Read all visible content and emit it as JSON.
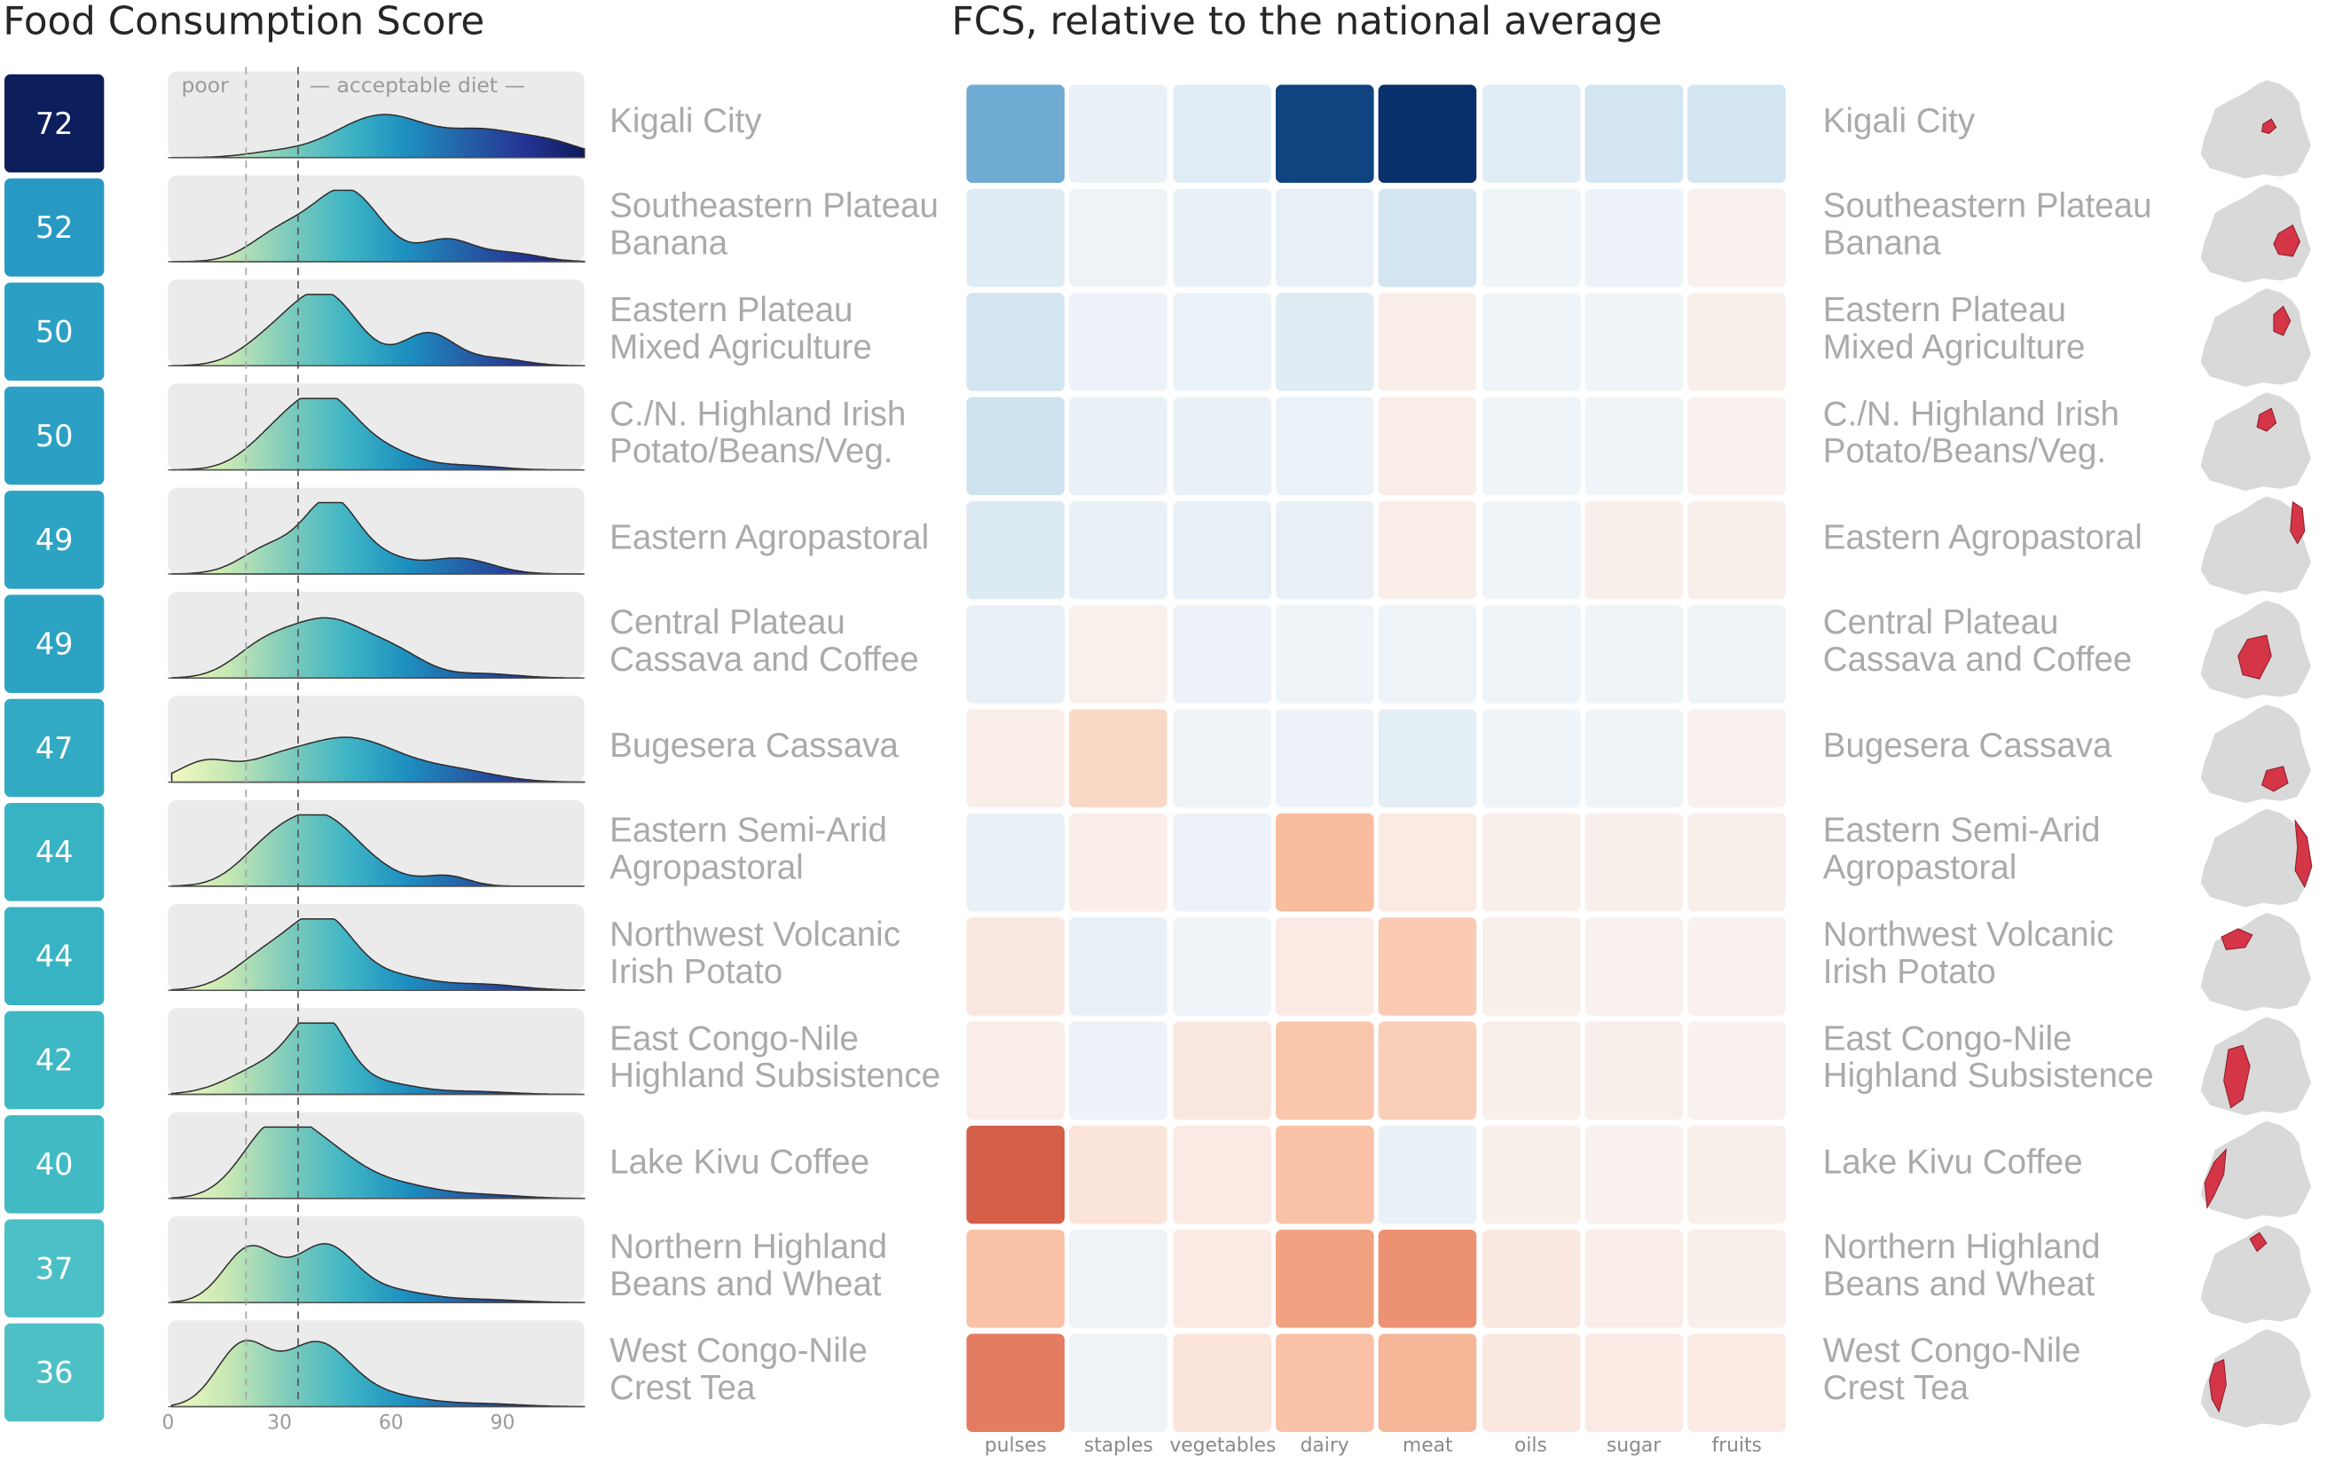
{
  "left_title": "Food Consumption Score",
  "right_title": "FCS, relative to the national average",
  "ridge_annotations": {
    "poor": "poor",
    "acceptable": "acceptable diet"
  },
  "colors": {
    "score_scale": [
      "#0c1e5b",
      "#1b5fa8",
      "#2186c0",
      "#2a9fc4",
      "#3ab6c3",
      "#4dc0c6"
    ],
    "ridge_gradient": [
      "#f4fbc0",
      "#c7e8b4",
      "#7fccbb",
      "#40b5c4",
      "#1d90c0",
      "#2460a7",
      "#253494",
      "#0d1a5c"
    ],
    "ridge_bg": "#ebebeb",
    "highlight": "#d43547",
    "map_fill": "#d9d9d9"
  },
  "chart_data": [
    {
      "type": "area",
      "title": "Food Consumption Score",
      "x_ticks": [
        "0",
        "30",
        "60",
        "90"
      ],
      "xlim": [
        0,
        112
      ],
      "thresholds": [
        21,
        35
      ],
      "categories": [
        "Kigali City",
        "Southeastern Plateau Banana",
        "Eastern Plateau Mixed Agriculture",
        "C./N. Highland Irish Potato/Beans/Veg.",
        "Eastern Agropastoral",
        "Central Plateau Cassava and Coffee",
        "Bugesera Cassava",
        "Eastern Semi-Arid Agropastoral",
        "Northwest Volcanic Irish Potato",
        "East Congo-Nile Highland Subsistence",
        "Lake Kivu Coffee",
        "Northern Highland Beans and Wheat",
        "West Congo-Nile Crest Tea"
      ],
      "region_lines": [
        [
          "Kigali City"
        ],
        [
          "Southeastern Plateau",
          "Banana"
        ],
        [
          "Eastern Plateau",
          "Mixed Agriculture"
        ],
        [
          "C./N. Highland Irish",
          "Potato/Beans/Veg."
        ],
        [
          "Eastern Agropastoral"
        ],
        [
          "Central Plateau",
          "Cassava and Coffee"
        ],
        [
          "Bugesera Cassava"
        ],
        [
          "Eastern Semi-Arid",
          "Agropastoral"
        ],
        [
          "Northwest Volcanic",
          "Irish Potato"
        ],
        [
          "East Congo-Nile",
          "Highland Subsistence"
        ],
        [
          "Lake Kivu Coffee"
        ],
        [
          "Northern Highland",
          "Beans and Wheat"
        ],
        [
          "West Congo-Nile",
          "Crest Tea"
        ]
      ],
      "scores": [
        "72",
        "52",
        "50",
        "50",
        "49",
        "49",
        "47",
        "44",
        "44",
        "42",
        "40",
        "37",
        "36"
      ],
      "densities": [
        {
          "peaks": [
            [
              58,
              0.6,
              13
            ],
            [
              85,
              0.3,
              9
            ],
            [
              102,
              0.22,
              9
            ],
            [
              28,
              0.06,
              8
            ]
          ]
        },
        {
          "peaks": [
            [
              48,
              1.0,
              9
            ],
            [
              30,
              0.38,
              8
            ],
            [
              75,
              0.3,
              7
            ],
            [
              92,
              0.12,
              8
            ]
          ]
        },
        {
          "peaks": [
            [
              42,
              1.0,
              9
            ],
            [
              27,
              0.3,
              8
            ],
            [
              70,
              0.45,
              7
            ],
            [
              88,
              0.1,
              8
            ]
          ]
        },
        {
          "peaks": [
            [
              42,
              1.0,
              9
            ],
            [
              28,
              0.35,
              8
            ],
            [
              60,
              0.2,
              8
            ],
            [
              80,
              0.06,
              9
            ]
          ]
        },
        {
          "peaks": [
            [
              44,
              1.0,
              7
            ],
            [
              28,
              0.38,
              8
            ],
            [
              58,
              0.2,
              7
            ],
            [
              78,
              0.22,
              9
            ]
          ]
        },
        {
          "peaks": [
            [
              43,
              0.8,
              11
            ],
            [
              25,
              0.34,
              8
            ],
            [
              62,
              0.26,
              8
            ],
            [
              85,
              0.06,
              9
            ]
          ]
        },
        {
          "peaks": [
            [
              48,
              0.62,
              14
            ],
            [
              10,
              0.28,
              7
            ],
            [
              27,
              0.16,
              8
            ],
            [
              78,
              0.14,
              11
            ]
          ]
        },
        {
          "peaks": [
            [
              41,
              0.95,
              10
            ],
            [
              26,
              0.38,
              8
            ],
            [
              75,
              0.14,
              6
            ],
            [
              58,
              0.1,
              8
            ]
          ]
        },
        {
          "peaks": [
            [
              42,
              0.92,
              8
            ],
            [
              27,
              0.5,
              9
            ],
            [
              60,
              0.2,
              10
            ],
            [
              85,
              0.08,
              10
            ]
          ]
        },
        {
          "peaks": [
            [
              41,
              1.0,
              7
            ],
            [
              27,
              0.4,
              10
            ],
            [
              58,
              0.15,
              9
            ],
            [
              82,
              0.04,
              10
            ]
          ]
        },
        {
          "peaks": [
            [
              29,
              1.0,
              9
            ],
            [
              44,
              0.5,
              9
            ],
            [
              62,
              0.18,
              10
            ],
            [
              85,
              0.05,
              10
            ]
          ]
        },
        {
          "peaks": [
            [
              22,
              0.76,
              7
            ],
            [
              42,
              0.78,
              8
            ],
            [
              60,
              0.16,
              10
            ],
            [
              85,
              0.04,
              10
            ]
          ]
        },
        {
          "peaks": [
            [
              20,
              0.84,
              7
            ],
            [
              40,
              0.88,
              9
            ],
            [
              60,
              0.14,
              10
            ],
            [
              85,
              0.04,
              10
            ]
          ]
        }
      ]
    },
    {
      "type": "heatmap",
      "title": "FCS, relative to the national average",
      "x": [
        "pulses",
        "staples",
        "vegetables",
        "dairy",
        "meat",
        "oils",
        "sugar",
        "fruits"
      ],
      "y": [
        "Kigali City",
        "Southeastern Plateau Banana",
        "Eastern Plateau Mixed Agriculture",
        "C./N. Highland Irish Potato/Beans/Veg.",
        "Eastern Agropastoral",
        "Central Plateau Cassava and Coffee",
        "Bugesera Cassava",
        "Eastern Semi-Arid Agropastoral",
        "Northwest Volcanic Irish Potato",
        "East Congo-Nile Highland Subsistence",
        "Lake Kivu Coffee",
        "Northern Highland Beans and Wheat",
        "West Congo-Nile Crest Tea"
      ],
      "values": [
        [
          0.55,
          0.06,
          0.12,
          0.92,
          1.0,
          0.12,
          0.22,
          0.22
        ],
        [
          0.14,
          0.03,
          0.06,
          0.08,
          0.22,
          0.02,
          0.04,
          -0.02
        ],
        [
          0.22,
          0.04,
          0.05,
          0.14,
          -0.06,
          0.02,
          0.02,
          -0.04
        ],
        [
          0.24,
          0.06,
          0.06,
          0.05,
          -0.06,
          0.02,
          0.02,
          -0.02
        ],
        [
          0.16,
          0.06,
          0.08,
          0.06,
          -0.06,
          0.02,
          -0.04,
          -0.04
        ],
        [
          0.07,
          -0.03,
          0.04,
          0.02,
          0.02,
          0.02,
          0.02,
          0.03
        ],
        [
          -0.06,
          -0.2,
          0.02,
          0.04,
          0.1,
          0.02,
          0.02,
          -0.02
        ],
        [
          0.06,
          -0.05,
          0.04,
          -0.32,
          -0.08,
          -0.04,
          -0.04,
          -0.04
        ],
        [
          -0.1,
          0.08,
          0.02,
          -0.08,
          -0.26,
          -0.04,
          -0.02,
          -0.02
        ],
        [
          -0.06,
          0.04,
          -0.1,
          -0.28,
          -0.24,
          -0.04,
          -0.04,
          -0.02
        ],
        [
          -0.72,
          -0.14,
          -0.08,
          -0.3,
          0.06,
          -0.04,
          -0.02,
          -0.04
        ],
        [
          -0.3,
          0.03,
          -0.08,
          -0.42,
          -0.48,
          -0.1,
          -0.06,
          -0.04
        ],
        [
          -0.56,
          0.03,
          -0.14,
          -0.3,
          -0.34,
          -0.1,
          -0.08,
          -0.08
        ]
      ]
    }
  ]
}
